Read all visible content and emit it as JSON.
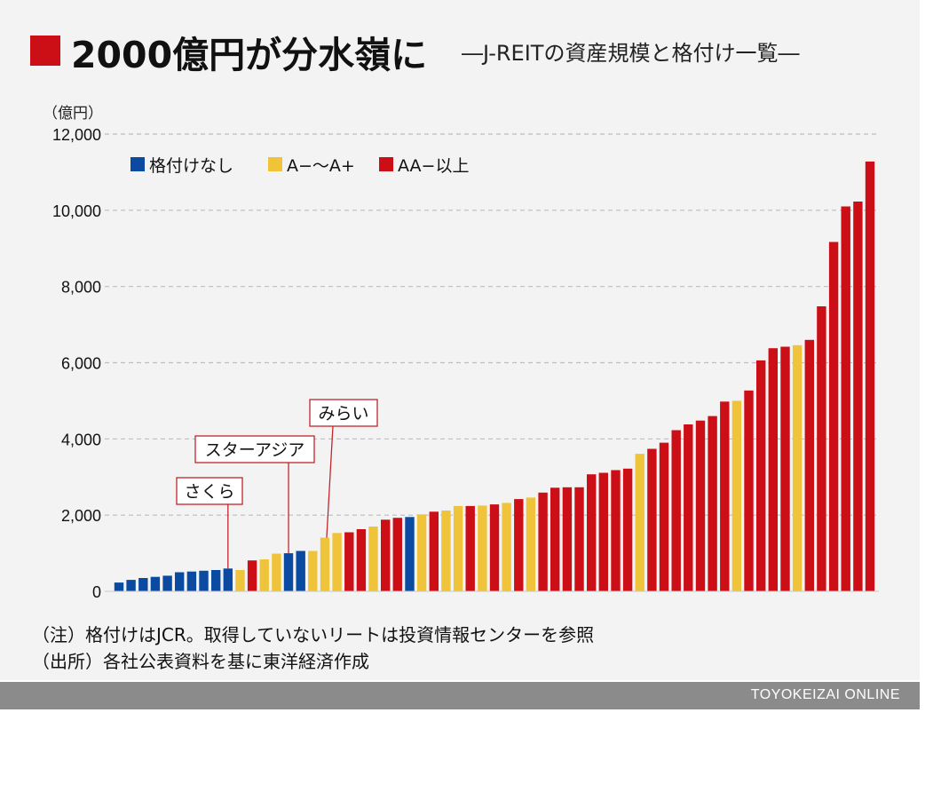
{
  "title": "2000億円が分水嶺に",
  "subtitle": "―J-REITの資産規模と格付け一覧―",
  "unit_label": "（億円）",
  "notes": [
    "（注）格付けはJCR。取得していないリートは投資情報センターを参照",
    "（出所）各社公表資料を基に東洋経済作成"
  ],
  "brand": "TOYOKEIZAI ONLINE",
  "colors": {
    "none": "#0a4aa0",
    "A": "#f0c43a",
    "AA": "#cc0e16",
    "title_square": "#cc0e16"
  },
  "chart_data": {
    "type": "bar",
    "ylim": [
      0,
      12000
    ],
    "yticks": [
      0,
      2000,
      4000,
      6000,
      8000,
      10000,
      12000
    ],
    "ytick_labels": [
      "0",
      "2,000",
      "4,000",
      "6,000",
      "8,000",
      "10,000",
      "12,000"
    ],
    "grid": true,
    "legend_position": "top-left",
    "series": [
      {
        "key": "none",
        "name": "格付けなし"
      },
      {
        "key": "A",
        "name": "A−〜A+"
      },
      {
        "key": "AA",
        "name": "AA−以上"
      }
    ],
    "values": [
      230,
      300,
      350,
      380,
      410,
      500,
      520,
      540,
      560,
      600,
      560,
      810,
      840,
      990,
      1000,
      1060,
      1060,
      1410,
      1530,
      1550,
      1630,
      1700,
      1880,
      1930,
      1950,
      2020,
      2090,
      2120,
      2240,
      2240,
      2250,
      2280,
      2320,
      2420,
      2460,
      2590,
      2720,
      2730,
      2730,
      3070,
      3110,
      3180,
      3220,
      3610,
      3740,
      3900,
      4230,
      4380,
      4480,
      4600,
      4980,
      5000,
      5270,
      6060,
      6380,
      6420,
      6460,
      6600,
      7480,
      9170,
      10100,
      10230,
      11280
    ],
    "ratings": [
      "none",
      "none",
      "none",
      "none",
      "none",
      "none",
      "none",
      "none",
      "none",
      "none",
      "A",
      "AA",
      "A",
      "A",
      "none",
      "none",
      "A",
      "A",
      "A",
      "AA",
      "AA",
      "A",
      "AA",
      "AA",
      "none",
      "A",
      "AA",
      "A",
      "A",
      "AA",
      "A",
      "AA",
      "A",
      "AA",
      "A",
      "AA",
      "AA",
      "AA",
      "AA",
      "AA",
      "AA",
      "AA",
      "AA",
      "A",
      "AA",
      "AA",
      "AA",
      "AA",
      "AA",
      "AA",
      "AA",
      "A",
      "AA",
      "AA",
      "AA",
      "AA",
      "A",
      "AA",
      "AA",
      "AA",
      "AA",
      "AA",
      "AA"
    ],
    "annotations": [
      {
        "label": "さくら",
        "index": 9
      },
      {
        "label": "スターアジア",
        "index": 14
      },
      {
        "label": "みらい",
        "index": 17
      }
    ]
  }
}
